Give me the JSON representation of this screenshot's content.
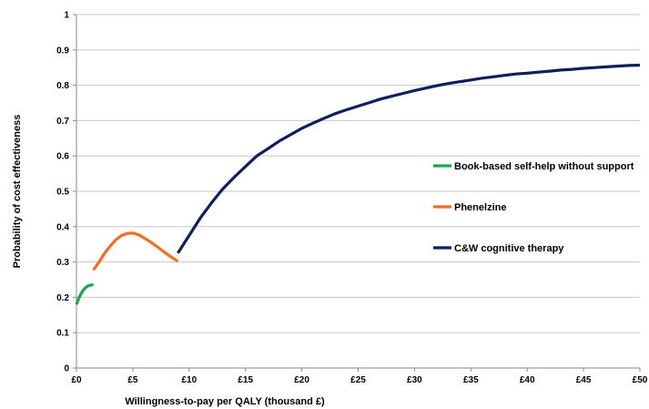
{
  "chart_data": {
    "type": "line",
    "title": "",
    "xlabel": "Willingness-to-pay per QALY (thousand £)",
    "ylabel": "Probability of cost effectiveness",
    "xlim": [
      0,
      50
    ],
    "ylim": [
      0,
      1
    ],
    "x_ticks": [
      0,
      5,
      10,
      15,
      20,
      25,
      30,
      35,
      40,
      45,
      50
    ],
    "x_tick_labels": [
      "£0",
      "£5",
      "£10",
      "£15",
      "£20",
      "£25",
      "£30",
      "£35",
      "£40",
      "£45",
      "£50"
    ],
    "y_ticks": [
      0,
      0.1,
      0.2,
      0.3,
      0.4,
      0.5,
      0.6,
      0.7,
      0.8,
      0.9,
      1
    ],
    "y_tick_labels": [
      "0",
      "0.1",
      "0.2",
      "0.3",
      "0.4",
      "0.5",
      "0.6",
      "0.7",
      "0.8",
      "0.9",
      "1"
    ],
    "grid": "horizontal",
    "legend_position": "right",
    "series": [
      {
        "name": "Book-based self-help without support",
        "color": "#1aa84a",
        "points": [
          [
            0,
            0.18
          ],
          [
            0.2,
            0.197
          ],
          [
            0.4,
            0.21
          ],
          [
            0.6,
            0.22
          ],
          [
            0.8,
            0.227
          ],
          [
            1.0,
            0.232
          ],
          [
            1.2,
            0.234
          ],
          [
            1.5,
            0.236
          ]
        ]
      },
      {
        "name": "Phenelzine",
        "color": "#f07020",
        "points": [
          [
            1.5,
            0.277
          ],
          [
            2,
            0.3
          ],
          [
            2.5,
            0.325
          ],
          [
            3,
            0.345
          ],
          [
            3.5,
            0.363
          ],
          [
            4,
            0.375
          ],
          [
            4.5,
            0.381
          ],
          [
            5,
            0.382
          ],
          [
            5.5,
            0.377
          ],
          [
            6,
            0.368
          ],
          [
            6.5,
            0.358
          ],
          [
            7,
            0.347
          ],
          [
            7.5,
            0.335
          ],
          [
            8,
            0.323
          ],
          [
            8.5,
            0.312
          ],
          [
            9,
            0.302
          ]
        ]
      },
      {
        "name": "C&W cognitive therapy",
        "color": "#0d1f5c",
        "points": [
          [
            9,
            0.325
          ],
          [
            10,
            0.375
          ],
          [
            11,
            0.425
          ],
          [
            12,
            0.468
          ],
          [
            13,
            0.507
          ],
          [
            14,
            0.54
          ],
          [
            15,
            0.57
          ],
          [
            16,
            0.6
          ],
          [
            17,
            0.621
          ],
          [
            18,
            0.642
          ],
          [
            19,
            0.66
          ],
          [
            20,
            0.678
          ],
          [
            21,
            0.693
          ],
          [
            22,
            0.707
          ],
          [
            23,
            0.72
          ],
          [
            24,
            0.731
          ],
          [
            25,
            0.741
          ],
          [
            26,
            0.751
          ],
          [
            27,
            0.761
          ],
          [
            28,
            0.769
          ],
          [
            29,
            0.777
          ],
          [
            30,
            0.785
          ],
          [
            31,
            0.792
          ],
          [
            32,
            0.799
          ],
          [
            33,
            0.805
          ],
          [
            34,
            0.81
          ],
          [
            35,
            0.815
          ],
          [
            36,
            0.82
          ],
          [
            37,
            0.824
          ],
          [
            38,
            0.828
          ],
          [
            39,
            0.832
          ],
          [
            40,
            0.834
          ],
          [
            41,
            0.837
          ],
          [
            42,
            0.84
          ],
          [
            43,
            0.843
          ],
          [
            44,
            0.845
          ],
          [
            45,
            0.848
          ],
          [
            46,
            0.85
          ],
          [
            47,
            0.852
          ],
          [
            48,
            0.854
          ],
          [
            49,
            0.856
          ],
          [
            50,
            0.857
          ]
        ]
      }
    ]
  }
}
